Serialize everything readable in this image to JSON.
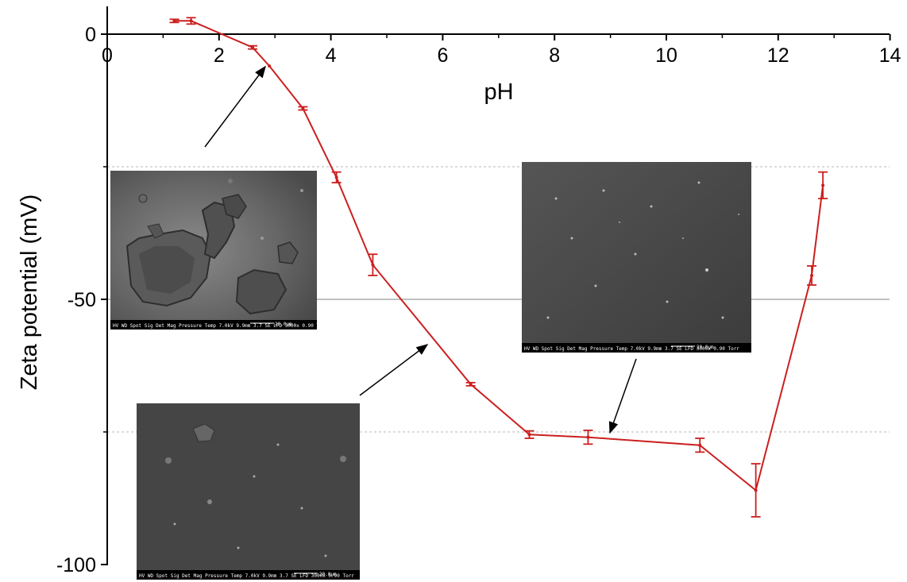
{
  "chart_data": {
    "type": "line",
    "xlabel": "pH",
    "ylabel": "Zeta potential (mV)",
    "xlim": [
      0,
      14
    ],
    "ylim": [
      -100,
      5
    ],
    "x_ticks": [
      "0",
      "2",
      "4",
      "6",
      "8",
      "10",
      "12",
      "14"
    ],
    "y_ticks": [
      "0",
      "-50",
      "-100"
    ],
    "series": [
      {
        "color": "#cc1f1f",
        "x": [
          1.2,
          1.5,
          2.6,
          2.9,
          3.5,
          4.1,
          4.75,
          6.5,
          7.55,
          8.6,
          10.6,
          11.6,
          12.6,
          12.8
        ],
        "y": [
          2.5,
          2.5,
          -2.5,
          -6,
          -14,
          -27,
          -43.5,
          -66,
          -75.5,
          -76,
          -77.5,
          -86,
          -45.5,
          -28.5
        ],
        "err": [
          0.3,
          0.6,
          0.3,
          0,
          0.3,
          1,
          2,
          0.3,
          0.7,
          1.3,
          1.3,
          5,
          1.8,
          2.5
        ]
      }
    ],
    "reference_lines": [
      {
        "y": -25,
        "style": "dashed"
      },
      {
        "y": -50,
        "style": "solid"
      },
      {
        "y": -75,
        "style": "dashed"
      }
    ]
  },
  "sem_images": [
    {
      "id": "sem-ph3",
      "info_bar": "HV  WD  Spot Sig Det Mag Pressure Temp  7.0kV 9.9mm 3.7 SE LFD 3000x 0.90 Torr",
      "scale_bar": "20.0μm"
    },
    {
      "id": "sem-ph11",
      "info_bar": "HV  WD  Spot Sig Det Mag Pressure Temp  7.0kV 9.9mm 3.7 SE LFD 3000x 0.90 Torr",
      "scale_bar": "20.0μm"
    },
    {
      "id": "sem-ph6",
      "info_bar": "HV  WD  Spot Sig Det Mag Pressure Temp  7.0kV 9.9mm 3.7 SE LFD 3000x 0.90 Torr",
      "scale_bar": "20.0μm"
    }
  ],
  "colors": {
    "series": "#cc1f1f",
    "sem_background": "#3e3e3e",
    "axis": "#000000",
    "gridline": "#999999"
  }
}
